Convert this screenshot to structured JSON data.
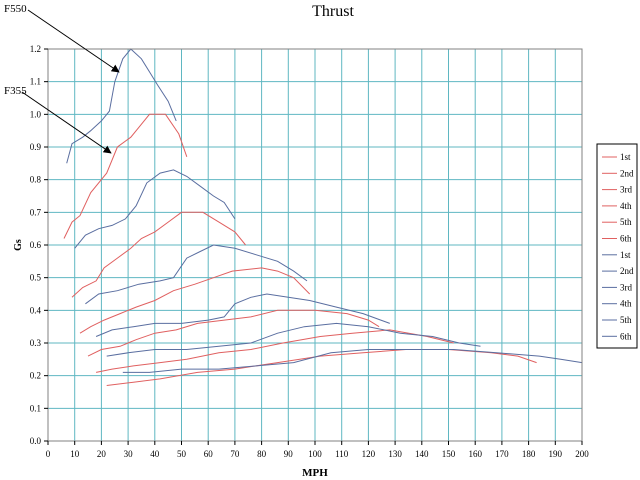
{
  "chart_data": {
    "type": "line",
    "title": "Thrust",
    "xlabel": "MPH",
    "ylabel": "Gs",
    "xlim": [
      0,
      200
    ],
    "ylim": [
      0,
      1.2
    ],
    "x_ticks": [
      0,
      10,
      20,
      30,
      40,
      50,
      60,
      70,
      80,
      90,
      100,
      110,
      120,
      130,
      140,
      150,
      160,
      170,
      180,
      190,
      200
    ],
    "y_ticks": [
      0.0,
      0.1,
      0.2,
      0.3,
      0.4,
      0.5,
      0.6,
      0.7,
      0.8,
      0.9,
      1.0,
      1.1,
      1.2
    ],
    "grid": true,
    "legend_position": "right",
    "colors": {
      "F355": "#e06060",
      "F550": "#5a6ea0",
      "grid": "#5fb7c2"
    },
    "annotations": [
      {
        "text": "F550",
        "points_to": [
          26,
          1.13
        ]
      },
      {
        "text": "F355",
        "points_to": [
          24,
          0.87
        ]
      }
    ],
    "series": [
      {
        "name": "1st",
        "group": "F355",
        "points": [
          [
            6,
            0.62
          ],
          [
            9,
            0.67
          ],
          [
            12,
            0.69
          ],
          [
            16,
            0.76
          ],
          [
            22,
            0.82
          ],
          [
            26,
            0.9
          ],
          [
            31,
            0.93
          ],
          [
            34,
            0.96
          ],
          [
            38,
            1.0
          ],
          [
            44,
            1.0
          ],
          [
            49,
            0.94
          ],
          [
            52,
            0.87
          ]
        ]
      },
      {
        "name": "2nd",
        "group": "F355",
        "points": [
          [
            9,
            0.44
          ],
          [
            13,
            0.47
          ],
          [
            18,
            0.49
          ],
          [
            21,
            0.53
          ],
          [
            26,
            0.56
          ],
          [
            31,
            0.59
          ],
          [
            35,
            0.62
          ],
          [
            40,
            0.64
          ],
          [
            45,
            0.67
          ],
          [
            50,
            0.7
          ],
          [
            58,
            0.7
          ],
          [
            64,
            0.67
          ],
          [
            70,
            0.64
          ],
          [
            74,
            0.6
          ]
        ]
      },
      {
        "name": "3rd",
        "group": "F355",
        "points": [
          [
            12,
            0.33
          ],
          [
            16,
            0.35
          ],
          [
            21,
            0.37
          ],
          [
            27,
            0.39
          ],
          [
            33,
            0.41
          ],
          [
            40,
            0.43
          ],
          [
            47,
            0.46
          ],
          [
            55,
            0.48
          ],
          [
            62,
            0.5
          ],
          [
            69,
            0.52
          ],
          [
            80,
            0.53
          ],
          [
            86,
            0.52
          ],
          [
            92,
            0.5
          ],
          [
            98,
            0.45
          ]
        ]
      },
      {
        "name": "4th",
        "group": "F355",
        "points": [
          [
            15,
            0.26
          ],
          [
            20,
            0.28
          ],
          [
            27,
            0.29
          ],
          [
            33,
            0.31
          ],
          [
            40,
            0.33
          ],
          [
            48,
            0.34
          ],
          [
            56,
            0.36
          ],
          [
            66,
            0.37
          ],
          [
            76,
            0.38
          ],
          [
            86,
            0.4
          ],
          [
            100,
            0.4
          ],
          [
            112,
            0.39
          ],
          [
            120,
            0.37
          ],
          [
            124,
            0.35
          ]
        ]
      },
      {
        "name": "5th",
        "group": "F355",
        "points": [
          [
            18,
            0.21
          ],
          [
            24,
            0.22
          ],
          [
            32,
            0.23
          ],
          [
            42,
            0.24
          ],
          [
            52,
            0.25
          ],
          [
            64,
            0.27
          ],
          [
            76,
            0.28
          ],
          [
            88,
            0.3
          ],
          [
            102,
            0.32
          ],
          [
            114,
            0.33
          ],
          [
            128,
            0.34
          ],
          [
            142,
            0.32
          ],
          [
            152,
            0.3
          ]
        ]
      },
      {
        "name": "6th",
        "group": "F355",
        "points": [
          [
            22,
            0.17
          ],
          [
            32,
            0.18
          ],
          [
            42,
            0.19
          ],
          [
            56,
            0.21
          ],
          [
            70,
            0.22
          ],
          [
            86,
            0.24
          ],
          [
            102,
            0.26
          ],
          [
            118,
            0.27
          ],
          [
            134,
            0.28
          ],
          [
            150,
            0.28
          ],
          [
            166,
            0.27
          ],
          [
            176,
            0.26
          ],
          [
            183,
            0.24
          ]
        ]
      },
      {
        "name": "1st",
        "group": "F550",
        "points": [
          [
            7,
            0.85
          ],
          [
            9,
            0.91
          ],
          [
            13,
            0.93
          ],
          [
            16,
            0.95
          ],
          [
            20,
            0.98
          ],
          [
            23,
            1.01
          ],
          [
            25,
            1.1
          ],
          [
            28,
            1.17
          ],
          [
            31,
            1.2
          ],
          [
            35,
            1.17
          ],
          [
            38,
            1.13
          ],
          [
            41,
            1.09
          ],
          [
            45,
            1.04
          ],
          [
            48,
            0.98
          ]
        ]
      },
      {
        "name": "2nd",
        "group": "F550",
        "points": [
          [
            10,
            0.59
          ],
          [
            14,
            0.63
          ],
          [
            19,
            0.65
          ],
          [
            24,
            0.66
          ],
          [
            29,
            0.68
          ],
          [
            33,
            0.72
          ],
          [
            37,
            0.79
          ],
          [
            42,
            0.82
          ],
          [
            47,
            0.83
          ],
          [
            52,
            0.81
          ],
          [
            57,
            0.78
          ],
          [
            62,
            0.75
          ],
          [
            66,
            0.73
          ],
          [
            70,
            0.68
          ]
        ]
      },
      {
        "name": "3rd",
        "group": "F550",
        "points": [
          [
            14,
            0.42
          ],
          [
            19,
            0.45
          ],
          [
            26,
            0.46
          ],
          [
            34,
            0.48
          ],
          [
            42,
            0.49
          ],
          [
            47,
            0.5
          ],
          [
            52,
            0.56
          ],
          [
            57,
            0.58
          ],
          [
            62,
            0.6
          ],
          [
            70,
            0.59
          ],
          [
            78,
            0.57
          ],
          [
            86,
            0.55
          ],
          [
            92,
            0.52
          ],
          [
            97,
            0.49
          ]
        ]
      },
      {
        "name": "4th",
        "group": "F550",
        "points": [
          [
            18,
            0.32
          ],
          [
            24,
            0.34
          ],
          [
            32,
            0.35
          ],
          [
            40,
            0.36
          ],
          [
            50,
            0.36
          ],
          [
            60,
            0.37
          ],
          [
            66,
            0.38
          ],
          [
            70,
            0.42
          ],
          [
            76,
            0.44
          ],
          [
            82,
            0.45
          ],
          [
            90,
            0.44
          ],
          [
            98,
            0.43
          ],
          [
            108,
            0.41
          ],
          [
            118,
            0.39
          ],
          [
            128,
            0.36
          ]
        ]
      },
      {
        "name": "5th",
        "group": "F550",
        "points": [
          [
            22,
            0.26
          ],
          [
            30,
            0.27
          ],
          [
            40,
            0.28
          ],
          [
            52,
            0.28
          ],
          [
            64,
            0.29
          ],
          [
            76,
            0.3
          ],
          [
            86,
            0.33
          ],
          [
            96,
            0.35
          ],
          [
            108,
            0.36
          ],
          [
            120,
            0.35
          ],
          [
            132,
            0.33
          ],
          [
            144,
            0.32
          ],
          [
            154,
            0.3
          ],
          [
            162,
            0.29
          ]
        ]
      },
      {
        "name": "6th",
        "group": "F550",
        "points": [
          [
            28,
            0.21
          ],
          [
            38,
            0.21
          ],
          [
            50,
            0.22
          ],
          [
            64,
            0.22
          ],
          [
            78,
            0.23
          ],
          [
            92,
            0.24
          ],
          [
            106,
            0.27
          ],
          [
            120,
            0.28
          ],
          [
            136,
            0.28
          ],
          [
            152,
            0.28
          ],
          [
            168,
            0.27
          ],
          [
            184,
            0.26
          ],
          [
            192,
            0.25
          ],
          [
            200,
            0.24
          ]
        ]
      }
    ]
  }
}
